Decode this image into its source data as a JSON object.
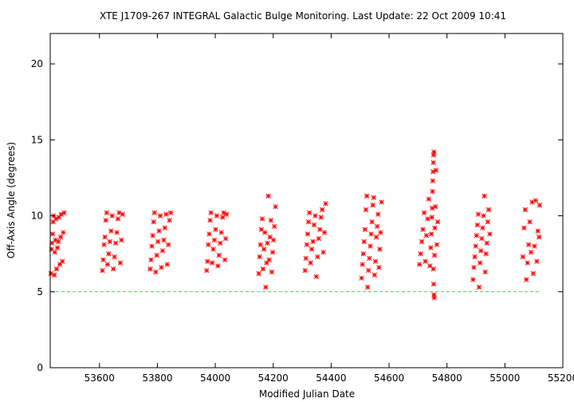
{
  "chart_data": {
    "type": "scatter",
    "title": "XTE J1709-267   INTEGRAL Galactic Bulge Monitoring.  Last Update: 22 Oct 2009 10:41",
    "xlabel": "Modified Julian Date",
    "ylabel": "Off-Axis Angle (degrees)",
    "xlim": [
      53430,
      55200
    ],
    "ylim": [
      0,
      22
    ],
    "xticks": [
      53600,
      53800,
      54000,
      54200,
      54400,
      54600,
      54800,
      55000,
      55200
    ],
    "yticks": [
      0,
      5,
      10,
      15,
      20
    ],
    "grid": false,
    "legend": "none",
    "marker": "asterisk",
    "point_color": "#ff0000",
    "threshold_line": {
      "y": 5,
      "x_range": [
        53430,
        55120
      ],
      "color": "#00cc00",
      "style": "dashed"
    },
    "series": [
      {
        "points": [
          [
            53432,
            6.2
          ],
          [
            53434,
            7.8
          ],
          [
            53436,
            8.2
          ],
          [
            53438,
            8.8
          ],
          [
            53440,
            9.6
          ],
          [
            53442,
            10.0
          ],
          [
            53444,
            6.1
          ],
          [
            53446,
            7.6
          ],
          [
            53448,
            8.4
          ],
          [
            53450,
            9.8
          ],
          [
            53452,
            6.5
          ],
          [
            53455,
            7.9
          ],
          [
            53458,
            8.3
          ],
          [
            53460,
            9.9
          ],
          [
            53463,
            6.8
          ],
          [
            53466,
            8.6
          ],
          [
            53468,
            10.1
          ],
          [
            53472,
            7.0
          ],
          [
            53475,
            8.9
          ],
          [
            53478,
            10.2
          ],
          [
            53610,
            6.4
          ],
          [
            53613,
            7.1
          ],
          [
            53616,
            8.1
          ],
          [
            53619,
            8.6
          ],
          [
            53622,
            9.7
          ],
          [
            53625,
            10.2
          ],
          [
            53628,
            6.8
          ],
          [
            53632,
            7.5
          ],
          [
            53636,
            8.3
          ],
          [
            53640,
            9.0
          ],
          [
            53644,
            10.0
          ],
          [
            53648,
            6.5
          ],
          [
            53652,
            7.3
          ],
          [
            53656,
            8.2
          ],
          [
            53660,
            8.9
          ],
          [
            53664,
            9.8
          ],
          [
            53668,
            10.2
          ],
          [
            53672,
            6.9
          ],
          [
            53676,
            8.4
          ],
          [
            53680,
            10.1
          ],
          [
            53775,
            6.5
          ],
          [
            53778,
            7.1
          ],
          [
            53781,
            8.0
          ],
          [
            53784,
            8.7
          ],
          [
            53787,
            9.6
          ],
          [
            53790,
            10.2
          ],
          [
            53794,
            6.3
          ],
          [
            53798,
            7.4
          ],
          [
            53802,
            8.3
          ],
          [
            53806,
            9.0
          ],
          [
            53810,
            10.0
          ],
          [
            53814,
            6.6
          ],
          [
            53818,
            7.7
          ],
          [
            53822,
            8.4
          ],
          [
            53826,
            9.2
          ],
          [
            53830,
            10.1
          ],
          [
            53834,
            6.8
          ],
          [
            53838,
            8.1
          ],
          [
            53842,
            9.7
          ],
          [
            53846,
            10.2
          ],
          [
            53970,
            6.4
          ],
          [
            53973,
            7.0
          ],
          [
            53976,
            8.1
          ],
          [
            53979,
            8.8
          ],
          [
            53982,
            9.7
          ],
          [
            53985,
            10.2
          ],
          [
            53989,
            6.9
          ],
          [
            53993,
            7.8
          ],
          [
            53997,
            8.4
          ],
          [
            54001,
            9.1
          ],
          [
            54005,
            10.0
          ],
          [
            54009,
            6.7
          ],
          [
            54013,
            7.4
          ],
          [
            54017,
            8.2
          ],
          [
            54021,
            8.9
          ],
          [
            54025,
            9.9
          ],
          [
            54029,
            10.2
          ],
          [
            54033,
            7.1
          ],
          [
            54036,
            8.5
          ],
          [
            54039,
            10.1
          ],
          [
            54150,
            6.2
          ],
          [
            54153,
            7.3
          ],
          [
            54156,
            8.1
          ],
          [
            54159,
            9.1
          ],
          [
            54162,
            9.8
          ],
          [
            54165,
            6.5
          ],
          [
            54168,
            7.8
          ],
          [
            54171,
            8.9
          ],
          [
            54174,
            5.3
          ],
          [
            54177,
            6.9
          ],
          [
            54180,
            8.2
          ],
          [
            54183,
            11.3
          ],
          [
            54186,
            7.1
          ],
          [
            54189,
            8.6
          ],
          [
            54192,
            9.7
          ],
          [
            54195,
            6.3
          ],
          [
            54198,
            7.6
          ],
          [
            54201,
            8.4
          ],
          [
            54204,
            9.3
          ],
          [
            54208,
            10.6
          ],
          [
            54310,
            6.4
          ],
          [
            54313,
            7.2
          ],
          [
            54316,
            8.1
          ],
          [
            54319,
            8.8
          ],
          [
            54322,
            9.6
          ],
          [
            54325,
            10.2
          ],
          [
            54329,
            6.9
          ],
          [
            54333,
            7.8
          ],
          [
            54337,
            8.3
          ],
          [
            54341,
            9.4
          ],
          [
            54345,
            10.0
          ],
          [
            54349,
            6.0
          ],
          [
            54353,
            7.3
          ],
          [
            54357,
            8.5
          ],
          [
            54361,
            9.1
          ],
          [
            54365,
            9.9
          ],
          [
            54369,
            10.4
          ],
          [
            54373,
            7.6
          ],
          [
            54377,
            8.9
          ],
          [
            54381,
            10.8
          ],
          [
            54505,
            5.9
          ],
          [
            54508,
            6.8
          ],
          [
            54511,
            7.5
          ],
          [
            54514,
            8.3
          ],
          [
            54517,
            9.1
          ],
          [
            54520,
            10.4
          ],
          [
            54523,
            11.3
          ],
          [
            54526,
            5.3
          ],
          [
            54529,
            6.4
          ],
          [
            54532,
            7.2
          ],
          [
            54535,
            8.0
          ],
          [
            54538,
            8.8
          ],
          [
            54541,
            9.6
          ],
          [
            54544,
            10.7
          ],
          [
            54547,
            11.2
          ],
          [
            54550,
            6.1
          ],
          [
            54553,
            7.0
          ],
          [
            54556,
            8.6
          ],
          [
            54559,
            9.3
          ],
          [
            54562,
            10.1
          ],
          [
            54565,
            6.6
          ],
          [
            54568,
            7.8
          ],
          [
            54571,
            8.9
          ],
          [
            54574,
            10.9
          ],
          [
            54705,
            6.8
          ],
          [
            54709,
            7.5
          ],
          [
            54713,
            8.3
          ],
          [
            54717,
            9.1
          ],
          [
            54721,
            10.2
          ],
          [
            54725,
            7.0
          ],
          [
            54729,
            8.7
          ],
          [
            54733,
            9.8
          ],
          [
            54737,
            11.1
          ],
          [
            54741,
            6.7
          ],
          [
            54744,
            7.9
          ],
          [
            54746,
            8.8
          ],
          [
            54748,
            9.9
          ],
          [
            54749,
            10.5
          ],
          [
            54750,
            11.6
          ],
          [
            54751,
            12.3
          ],
          [
            54752,
            12.9
          ],
          [
            54753,
            13.5
          ],
          [
            54754,
            14.0
          ],
          [
            54755,
            14.2
          ],
          [
            54753,
            6.5
          ],
          [
            54754,
            5.5
          ],
          [
            54755,
            4.8
          ],
          [
            54756,
            4.6
          ],
          [
            54757,
            7.4
          ],
          [
            54758,
            9.2
          ],
          [
            54760,
            10.6
          ],
          [
            54762,
            13.0
          ],
          [
            54765,
            8.1
          ],
          [
            54768,
            9.6
          ],
          [
            54890,
            5.8
          ],
          [
            54893,
            6.6
          ],
          [
            54896,
            7.3
          ],
          [
            54899,
            8.0
          ],
          [
            54902,
            8.7
          ],
          [
            54905,
            9.4
          ],
          [
            54908,
            10.1
          ],
          [
            54911,
            5.3
          ],
          [
            54914,
            6.9
          ],
          [
            54917,
            7.7
          ],
          [
            54920,
            8.5
          ],
          [
            54923,
            9.2
          ],
          [
            54926,
            10.0
          ],
          [
            54929,
            11.3
          ],
          [
            54932,
            6.3
          ],
          [
            54935,
            7.5
          ],
          [
            54938,
            8.2
          ],
          [
            54941,
            9.6
          ],
          [
            54944,
            10.4
          ],
          [
            54948,
            8.8
          ],
          [
            55062,
            7.3
          ],
          [
            55066,
            9.2
          ],
          [
            55070,
            10.4
          ],
          [
            55074,
            5.8
          ],
          [
            55078,
            6.9
          ],
          [
            55082,
            8.1
          ],
          [
            55086,
            9.6
          ],
          [
            55090,
            7.6
          ],
          [
            55094,
            10.9
          ],
          [
            55098,
            6.2
          ],
          [
            55102,
            8.0
          ],
          [
            55106,
            11.0
          ],
          [
            55110,
            7.0
          ],
          [
            55114,
            9.0
          ],
          [
            55118,
            8.6
          ],
          [
            55120,
            10.7
          ]
        ]
      }
    ]
  }
}
